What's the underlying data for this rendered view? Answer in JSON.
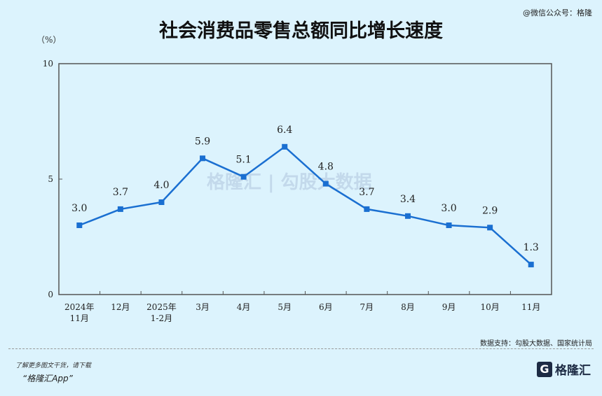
{
  "header": {
    "title": "社会消费品零售总额同比增长速度",
    "wechat": "@微信公众号：格隆",
    "unit": "（%）"
  },
  "watermark": "格隆汇 | 勾股大数据",
  "footer": {
    "source": "数据支持：勾股大数据、国家统计局",
    "promo_line1": "了解更多图文干货，请下载",
    "promo_line2": "“格隆汇App”",
    "logo_text": "格隆汇",
    "logo_mark": "G"
  },
  "colors": {
    "line": "#1a6fd1",
    "background": "#dcf3fd"
  },
  "chart_data": {
    "type": "line",
    "title": "社会消费品零售总额同比增长速度",
    "ylabel": "（%）",
    "ylim": [
      0,
      10
    ],
    "yticks": [
      "0",
      "5",
      "10"
    ],
    "categories": [
      [
        "2024年",
        "11月"
      ],
      [
        "12月"
      ],
      [
        "2025年",
        "1-2月"
      ],
      [
        "3月"
      ],
      [
        "4月"
      ],
      [
        "5月"
      ],
      [
        "6月"
      ],
      [
        "7月"
      ],
      [
        "8月"
      ],
      [
        "9月"
      ],
      [
        "10月"
      ],
      [
        "11月"
      ]
    ],
    "values": [
      3.0,
      3.7,
      4.0,
      5.9,
      5.1,
      6.4,
      4.8,
      3.7,
      3.4,
      3.0,
      2.9,
      1.3
    ],
    "labels": [
      "3.0",
      "3.7",
      "4.0",
      "5.9",
      "5.1",
      "6.4",
      "4.8",
      "3.7",
      "3.4",
      "3.0",
      "2.9",
      "1.3"
    ],
    "grid": false,
    "legend": "none"
  }
}
